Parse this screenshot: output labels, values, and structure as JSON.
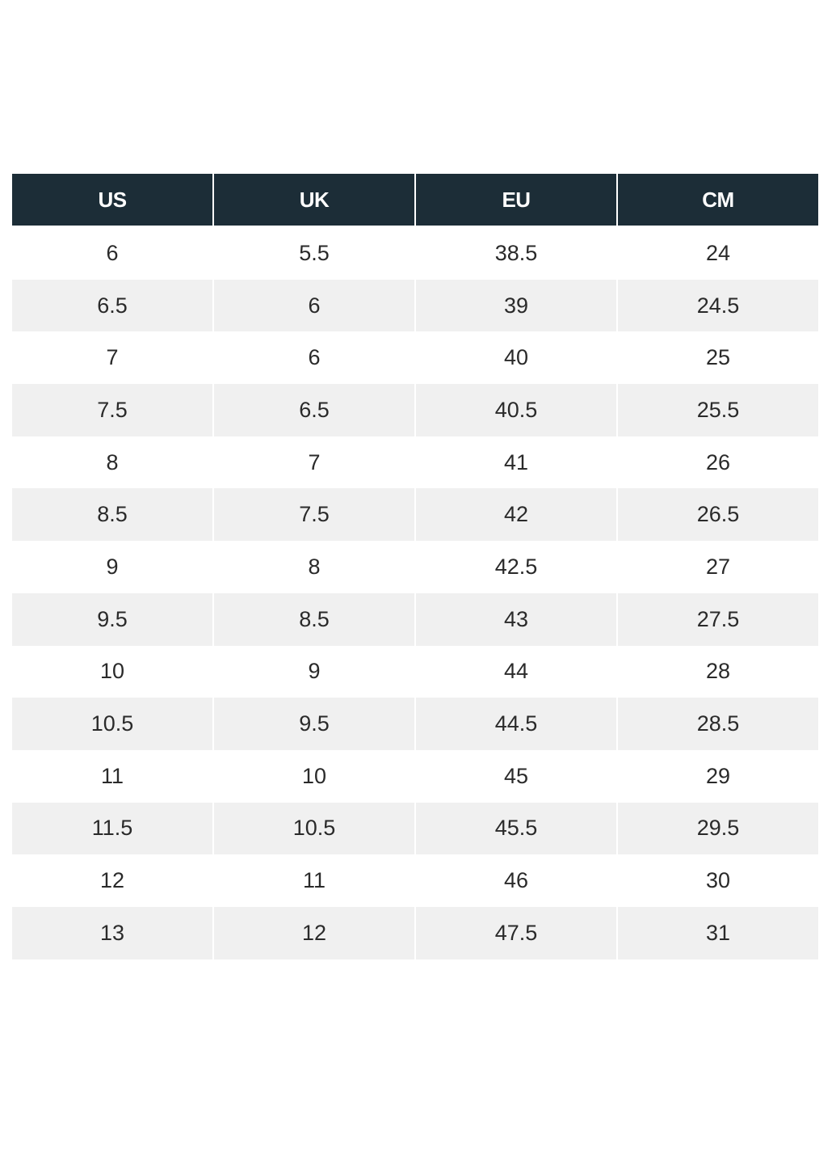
{
  "table": {
    "headers": [
      "US",
      "UK",
      "EU",
      "CM"
    ],
    "rows": [
      [
        "6",
        "5.5",
        "38.5",
        "24"
      ],
      [
        "6.5",
        "6",
        "39",
        "24.5"
      ],
      [
        "7",
        "6",
        "40",
        "25"
      ],
      [
        "7.5",
        "6.5",
        "40.5",
        "25.5"
      ],
      [
        "8",
        "7",
        "41",
        "26"
      ],
      [
        "8.5",
        "7.5",
        "42",
        "26.5"
      ],
      [
        "9",
        "8",
        "42.5",
        "27"
      ],
      [
        "9.5",
        "8.5",
        "43",
        "27.5"
      ],
      [
        "10",
        "9",
        "44",
        "28"
      ],
      [
        "10.5",
        "9.5",
        "44.5",
        "28.5"
      ],
      [
        "11",
        "10",
        "45",
        "29"
      ],
      [
        "11.5",
        "10.5",
        "45.5",
        "29.5"
      ],
      [
        "12",
        "11",
        "46",
        "30"
      ],
      [
        "13",
        "12",
        "47.5",
        "31"
      ]
    ]
  },
  "colors": {
    "header_bg": "#1c2d37",
    "header_text": "#ffffff",
    "stripe_bg": "#f0f0f0",
    "cell_text": "#2a2a2a"
  }
}
